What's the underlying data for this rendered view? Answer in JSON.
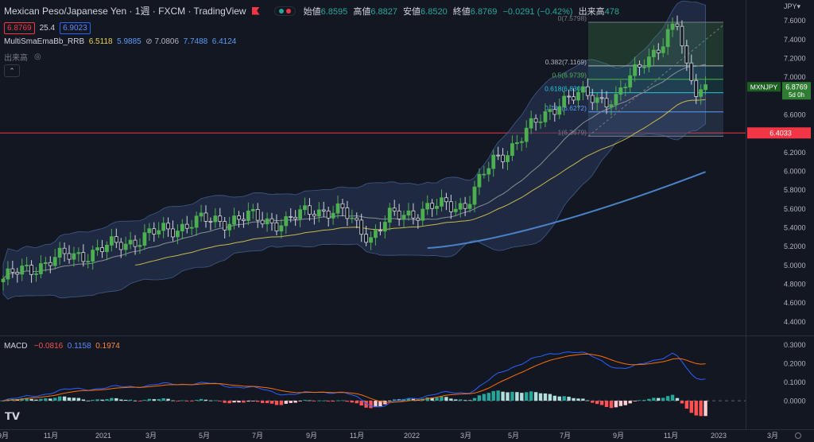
{
  "header": {
    "title": "Mexican Peso/Japanese Yen · 1週 · FXCM · TradingView",
    "ohlc": [
      {
        "label": "始値",
        "value": "6.8595"
      },
      {
        "label": "高値",
        "value": "6.8827"
      },
      {
        "label": "安値",
        "value": "6.8520"
      },
      {
        "label": "終値",
        "value": "6.8769"
      },
      {
        "label": "",
        "value": "−0.0291 (−0.42%)"
      },
      {
        "label": "出来高",
        "value": "478"
      }
    ],
    "sell_price": "6.8769",
    "spread": "25.4",
    "buy_price": "6.9023",
    "indicator_name": "MultiSmaEmaBb_RRB",
    "indicator_values": [
      {
        "value": "6.5118",
        "color": "#e8d44d"
      },
      {
        "value": "5.9885",
        "color": "#5b9cf6"
      },
      {
        "value": "7.0806",
        "color": "#b2b5be"
      },
      {
        "value": "7.7488",
        "color": "#5b9cf6"
      },
      {
        "value": "6.4124",
        "color": "#5b9cf6"
      }
    ],
    "volume_label": "出来高"
  },
  "macd_legend": {
    "name": "MACD",
    "hist": "−0.0816",
    "macd": "0.1158",
    "signal": "0.1974"
  },
  "colors": {
    "up": "#26a69a",
    "up_body": "#4caf50",
    "down": "#d1d4dc",
    "bb_fill": "#2a3a5c",
    "sma": "#8a8d96",
    "ema": "#c8b84a",
    "long": "#4a82c9",
    "hline": "#f23645",
    "macd_line": "#2962ff",
    "signal_line": "#ff6d00"
  },
  "chart_data": {
    "type": "candlestick",
    "symbol": "MXNJPY",
    "last_price": "6.8769",
    "countdown": "5d 0h",
    "horizontal_line": {
      "value": 6.4033,
      "label": "6.4033"
    },
    "price_axis": {
      "unit": "JPY",
      "ylim": [
        4.25,
        7.8
      ],
      "ticks": [
        "7.6000",
        "7.4000",
        "7.2000",
        "7.0000",
        "6.8000",
        "6.6000",
        "6.4000",
        "6.2000",
        "6.0000",
        "5.8000",
        "5.6000",
        "5.4000",
        "5.2000",
        "5.0000",
        "4.8000",
        "4.6000",
        "4.4000"
      ]
    },
    "time_axis": [
      "9月",
      "11月",
      "2021",
      "3月",
      "5月",
      "7月",
      "9月",
      "11月",
      "2022",
      "3月",
      "5月",
      "7月",
      "9月",
      "11月",
      "2023",
      "3月"
    ],
    "fibonacci": [
      {
        "level": "0",
        "price": 7.5798,
        "label": "0(7.5798)"
      },
      {
        "level": "0.382",
        "price": 7.1169,
        "label": "0.382(7.1169)"
      },
      {
        "level": "0.5",
        "price": 6.9739,
        "label": "0.5(6.9739)"
      },
      {
        "level": "0.618",
        "price": 6.8308,
        "label": "0.618(6.8308)"
      },
      {
        "level": "0.786",
        "price": 6.6272,
        "label": "0.786(6.6272)"
      },
      {
        "level": "1",
        "price": 6.3679,
        "label": "1(6.3679)"
      }
    ],
    "macd_axis": {
      "ylim": [
        -0.11,
        0.34
      ],
      "ticks": [
        "0.3000",
        "0.2000",
        "0.1000",
        "0.0000"
      ]
    },
    "macd_current": {
      "macd": 0.1158,
      "signal": 0.1974,
      "hist": -0.0816
    }
  }
}
